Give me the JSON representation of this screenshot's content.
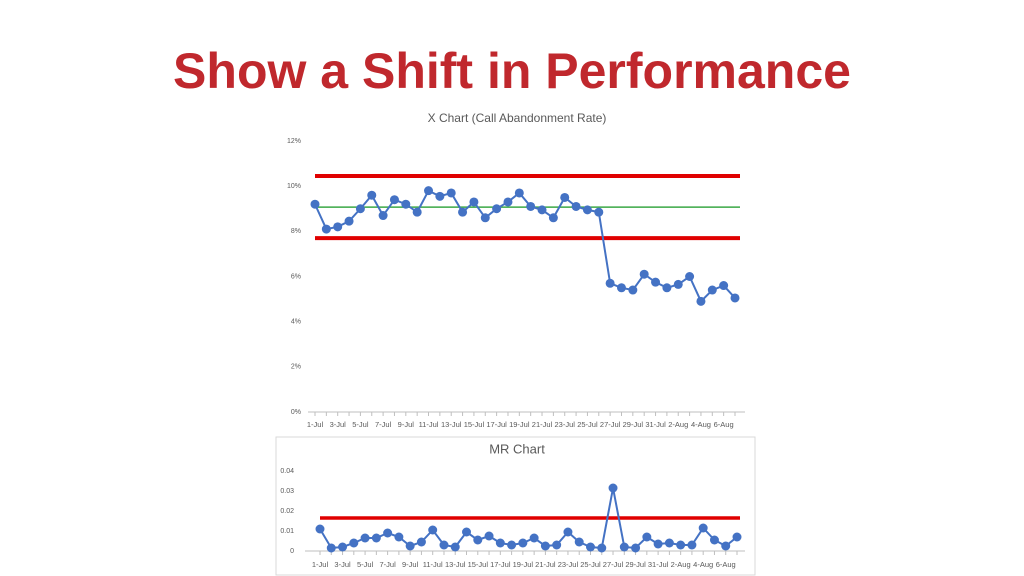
{
  "title": "Show a Shift in Performance",
  "chart_data": [
    {
      "type": "line",
      "title": "X Chart (Call Abandonment Rate)",
      "categories": [
        "1-Jul",
        null,
        "3-Jul",
        null,
        "5-Jul",
        null,
        "7-Jul",
        null,
        "9-Jul",
        null,
        "11-Jul",
        null,
        "13-Jul",
        null,
        "15-Jul",
        null,
        "17-Jul",
        null,
        "19-Jul",
        null,
        "21-Jul",
        null,
        "23-Jul",
        null,
        "25-Jul",
        null,
        "27-Jul",
        null,
        "29-Jul",
        null,
        "31-Jul",
        null,
        "2-Aug",
        null,
        "4-Aug",
        null,
        "6-Aug",
        null
      ],
      "series": [
        {
          "color": "#4472c4",
          "values": [
            9.2,
            8.1,
            8.2,
            8.45,
            9.0,
            9.6,
            8.7,
            9.4,
            9.2,
            8.85,
            9.8,
            9.55,
            9.7,
            8.85,
            9.3,
            8.6,
            9.0,
            9.3,
            9.7,
            9.1,
            8.95,
            8.6,
            9.5,
            9.1,
            8.95,
            8.85,
            5.7,
            5.5,
            5.4,
            6.1,
            5.75,
            5.5,
            5.65,
            6.0,
            4.9,
            5.4,
            5.6,
            5.05
          ]
        }
      ],
      "reference_lines": [
        {
          "value": 10.45,
          "color": "#e00000"
        },
        {
          "value": 9.07,
          "color": "#3aa845"
        },
        {
          "value": 7.7,
          "color": "#e00000"
        }
      ],
      "ylim": [
        0,
        12
      ],
      "yticks": [
        {
          "value": 0,
          "label": "0%"
        },
        {
          "value": 2,
          "label": "2%"
        },
        {
          "value": 4,
          "label": "4%"
        },
        {
          "value": 6,
          "label": "6%"
        },
        {
          "value": 8,
          "label": "8%"
        },
        {
          "value": 10,
          "label": "10%"
        },
        {
          "value": 12,
          "label": "12%"
        }
      ]
    },
    {
      "type": "line",
      "title": "MR Chart",
      "categories": [
        "1-Jul",
        null,
        "3-Jul",
        null,
        "5-Jul",
        null,
        "7-Jul",
        null,
        "9-Jul",
        null,
        "11-Jul",
        null,
        "13-Jul",
        null,
        "15-Jul",
        null,
        "17-Jul",
        null,
        "19-Jul",
        null,
        "21-Jul",
        null,
        "23-Jul",
        null,
        "25-Jul",
        null,
        "27-Jul",
        null,
        "29-Jul",
        null,
        "31-Jul",
        null,
        "2-Aug",
        null,
        "4-Aug",
        null,
        "6-Aug",
        null
      ],
      "series": [
        {
          "color": "#4472c4",
          "values": [
            0.011,
            0.0015,
            0.002,
            0.004,
            0.0065,
            0.0065,
            0.009,
            0.007,
            0.0025,
            0.0045,
            0.0105,
            0.003,
            0.002,
            0.0095,
            0.0055,
            0.0075,
            0.004,
            0.003,
            0.004,
            0.0065,
            0.0025,
            0.003,
            0.0095,
            0.0045,
            0.002,
            0.0015,
            0.0315,
            0.002,
            0.0015,
            0.007,
            0.0035,
            0.004,
            0.003,
            0.003,
            0.0115,
            0.0055,
            0.0025,
            0.007
          ]
        }
      ],
      "reference_lines": [
        {
          "value": 0.0165,
          "color": "#e00000"
        }
      ],
      "ylim": [
        0,
        0.04
      ],
      "yticks": [
        0,
        0.01,
        0.02,
        0.03,
        0.04
      ]
    }
  ]
}
